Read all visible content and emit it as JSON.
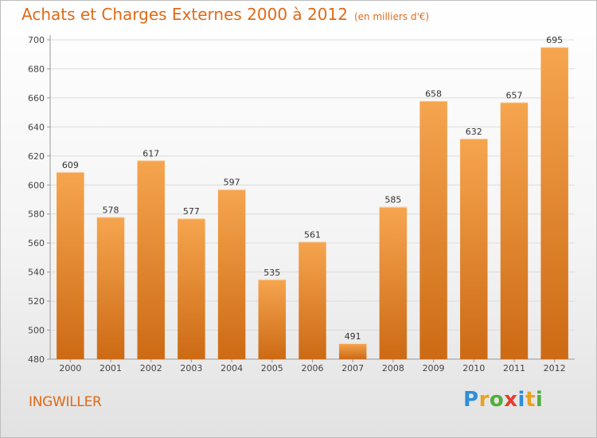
{
  "header": {
    "title": "Achats et Charges Externes 2000 à 2012",
    "subtitle": "(en milliers d'€)"
  },
  "footer": {
    "place": "INGWILLER",
    "logo_letters": [
      {
        "ch": "P",
        "color": "#2f8fd8"
      },
      {
        "ch": "r",
        "color": "#e9a321"
      },
      {
        "ch": "o",
        "color": "#4fae3b"
      },
      {
        "ch": "x",
        "color": "#e53d2e"
      },
      {
        "ch": "i",
        "color": "#2f8fd8"
      },
      {
        "ch": "t",
        "color": "#e9a321"
      },
      {
        "ch": "i",
        "color": "#4fae3b"
      }
    ]
  },
  "colors": {
    "accent": "#e06a17",
    "bar_top": "#f6a54f",
    "bar_bottom": "#cd6a14",
    "grid": "#dcdcdc",
    "axis": "#999999"
  },
  "chart_data": {
    "type": "bar",
    "title": "Achats et Charges Externes 2000 à 2012",
    "subtitle": "(en milliers d'€)",
    "categories": [
      "2000",
      "2001",
      "2002",
      "2003",
      "2004",
      "2005",
      "2006",
      "2007",
      "2008",
      "2009",
      "2010",
      "2011",
      "2012"
    ],
    "values": [
      609,
      578,
      617,
      577,
      597,
      535,
      561,
      491,
      585,
      658,
      632,
      657,
      695
    ],
    "ylim": [
      480,
      700
    ],
    "yticks": [
      480,
      500,
      520,
      540,
      560,
      580,
      600,
      620,
      640,
      660,
      680,
      700
    ],
    "grid": true,
    "xlabel": "",
    "ylabel": ""
  }
}
